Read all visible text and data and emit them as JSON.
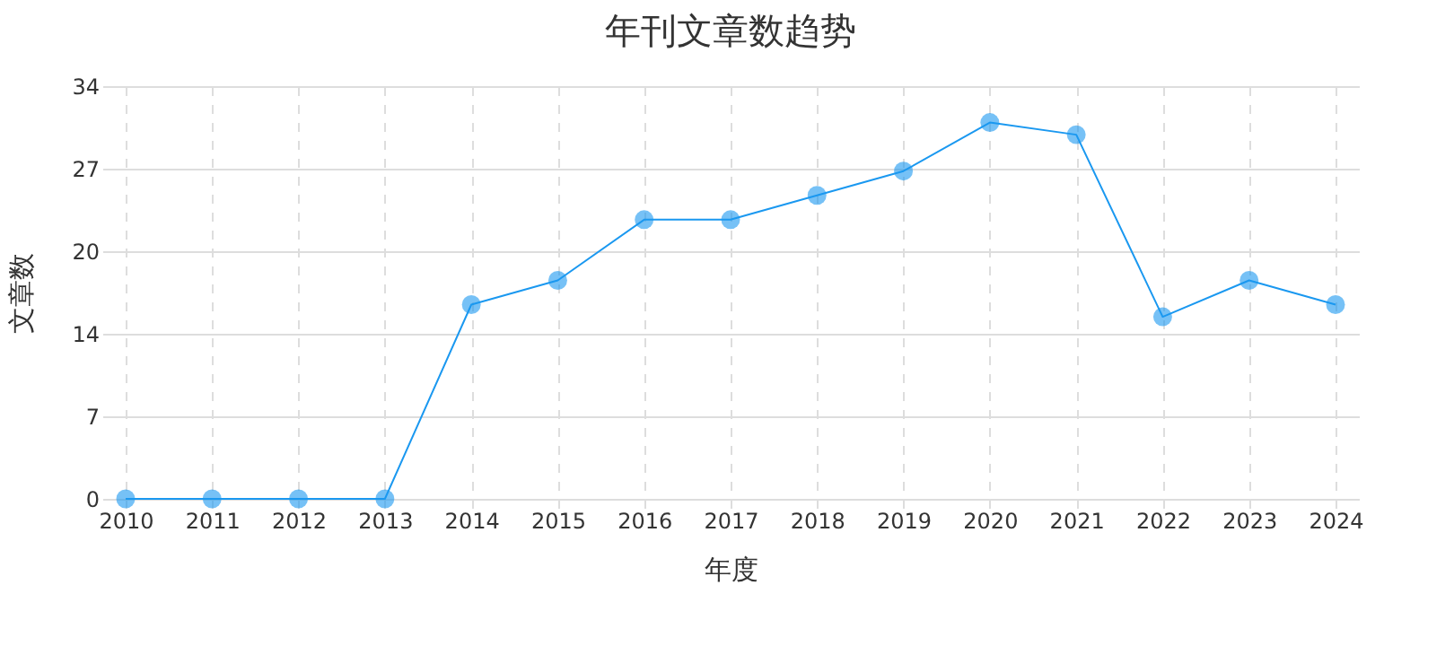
{
  "chart_data": {
    "type": "line",
    "title": "年刊文章数趋势",
    "xlabel": "年度",
    "ylabel": "文章数",
    "categories": [
      "2010",
      "2011",
      "2012",
      "2013",
      "2014",
      "2015",
      "2016",
      "2017",
      "2018",
      "2019",
      "2020",
      "2021",
      "2022",
      "2023",
      "2024"
    ],
    "series": [
      {
        "color": "#1a98f0",
        "values": [
          0,
          0,
          0,
          0,
          16,
          18,
          23,
          23,
          25,
          27,
          31,
          30,
          15,
          18,
          16
        ]
      }
    ],
    "ylim": [
      0,
      34
    ],
    "yticks": [
      0,
      {
        "value": 6.8,
        "label": "7"
      },
      {
        "value": 13.6,
        "label": "14"
      },
      {
        "value": 20.4,
        "label": "20"
      },
      {
        "value": 27.2,
        "label": "27"
      },
      34
    ],
    "grid": true,
    "marker": "circle",
    "line_style": "solid",
    "legend": false
  }
}
